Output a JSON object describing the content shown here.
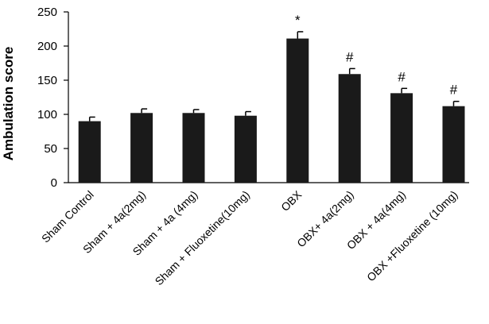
{
  "chart_data": {
    "type": "bar",
    "title": "",
    "xlabel": "",
    "ylabel": "Ambulation score",
    "ylim": [
      0,
      250
    ],
    "yticks": [
      0,
      50,
      100,
      150,
      200,
      250
    ],
    "grid": false,
    "categories": [
      "Sham Control",
      "Sham + 4a(2mg)",
      "Sham + 4a (4mg)",
      "Sham + Fluoxetine(10mg)",
      "OBX",
      "OBX+  4a(2mg)",
      "OBX + 4a(4mg)",
      "OBX +Fluoxetine (10mg)"
    ],
    "values": [
      90,
      102,
      102,
      98,
      211,
      159,
      131,
      112
    ],
    "errors": [
      6,
      6,
      5,
      6,
      10,
      8,
      7,
      7
    ],
    "annotations": [
      "",
      "",
      "",
      "",
      "*",
      "#",
      "#",
      "#"
    ],
    "colors": {
      "bar": "#1a1a1a",
      "axis": "#000000"
    }
  }
}
